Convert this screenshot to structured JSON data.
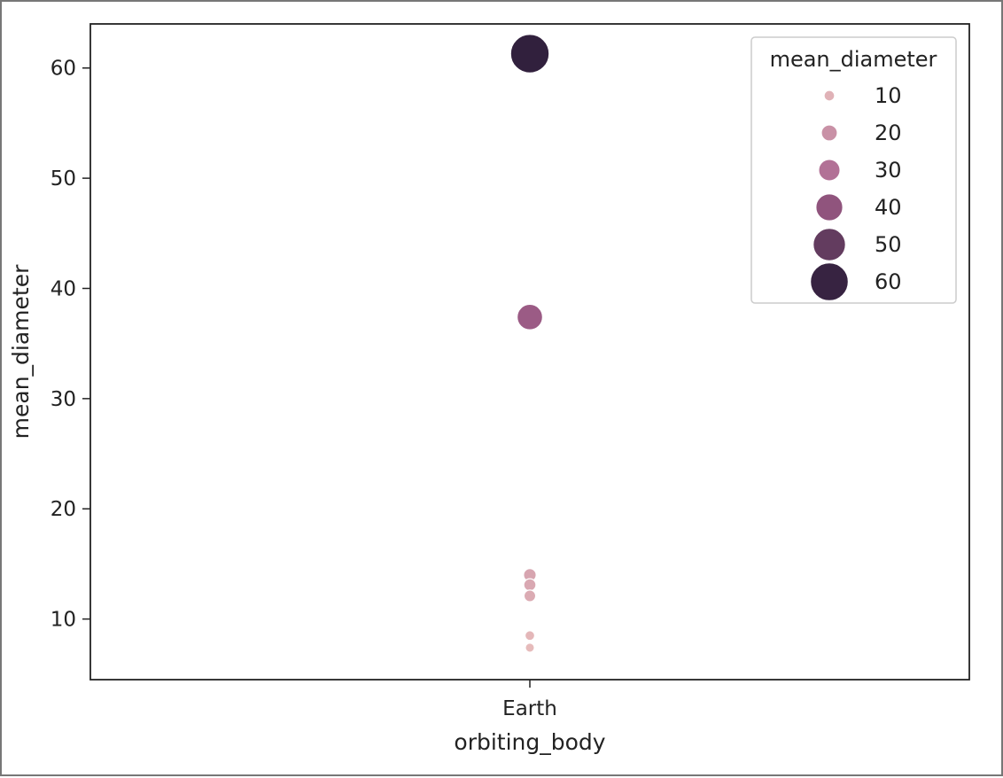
{
  "chart_data": {
    "type": "scatter",
    "xlabel": "orbiting_body",
    "ylabel": "mean_diameter",
    "x_categories": [
      "Earth"
    ],
    "ylim": [
      4.5,
      64
    ],
    "y_ticks": [
      10,
      20,
      30,
      40,
      50,
      60
    ],
    "grid": false,
    "points": [
      {
        "x": "Earth",
        "y": 61.3,
        "size": 61.3
      },
      {
        "x": "Earth",
        "y": 37.4,
        "size": 37.4
      },
      {
        "x": "Earth",
        "y": 14.0,
        "size": 14.0
      },
      {
        "x": "Earth",
        "y": 13.1,
        "size": 13.1
      },
      {
        "x": "Earth",
        "y": 12.1,
        "size": 12.1
      },
      {
        "x": "Earth",
        "y": 8.5,
        "size": 8.5
      },
      {
        "x": "Earth",
        "y": 7.4,
        "size": 7.4
      }
    ],
    "legend": {
      "title": "mean_diameter",
      "placement": "top-right",
      "entries": [
        {
          "label": "10",
          "value": 10
        },
        {
          "label": "20",
          "value": 20
        },
        {
          "label": "30",
          "value": 30
        },
        {
          "label": "40",
          "value": 40
        },
        {
          "label": "50",
          "value": 50
        },
        {
          "label": "60",
          "value": 60
        }
      ]
    },
    "colors": {
      "low": "#e7bcbc",
      "mid": "#a8628e",
      "high": "#2e1e3b",
      "axis": "#222222"
    }
  }
}
